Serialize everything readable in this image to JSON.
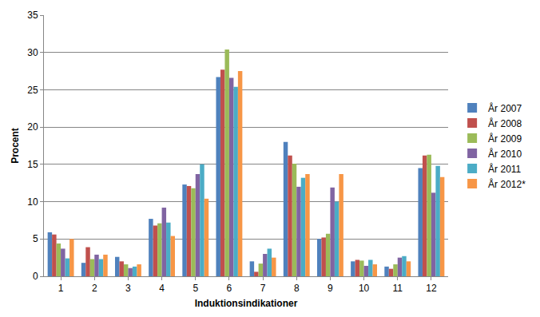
{
  "chart_data": {
    "type": "bar",
    "x_label": "Induktionsindikationer",
    "y_label": "Procent",
    "categories": [
      "1",
      "2",
      "3",
      "4",
      "5",
      "6",
      "7",
      "8",
      "9",
      "10",
      "11",
      "12"
    ],
    "series": [
      {
        "name": "År 2007",
        "color": "#4f81bd",
        "values": [
          5.9,
          1.8,
          2.6,
          7.7,
          12.3,
          26.7,
          2.0,
          18.0,
          5.0,
          2.0,
          1.3,
          14.5
        ]
      },
      {
        "name": "År 2008",
        "color": "#c0504d",
        "values": [
          5.6,
          3.9,
          2.0,
          6.8,
          12.1,
          27.7,
          0.6,
          16.2,
          5.2,
          2.2,
          1.0,
          16.2
        ]
      },
      {
        "name": "År 2009",
        "color": "#9bbb59",
        "values": [
          4.4,
          2.3,
          1.6,
          7.1,
          11.8,
          30.4,
          1.7,
          15.1,
          5.7,
          2.1,
          1.6,
          16.3
        ]
      },
      {
        "name": "År 2010",
        "color": "#8064a2",
        "values": [
          3.7,
          2.9,
          1.1,
          9.2,
          13.7,
          26.6,
          3.0,
          12.0,
          11.9,
          1.4,
          2.5,
          11.2
        ]
      },
      {
        "name": "År 2011",
        "color": "#4bacc6",
        "values": [
          2.4,
          2.3,
          1.3,
          7.2,
          15.0,
          25.4,
          3.7,
          13.2,
          10.0,
          2.2,
          2.7,
          14.8
        ]
      },
      {
        "name": "År 2012*",
        "color": "#f79646",
        "values": [
          5.0,
          2.9,
          1.6,
          5.4,
          10.4,
          27.5,
          2.5,
          13.7,
          13.7,
          1.6,
          2.0,
          13.3
        ]
      }
    ],
    "ylim": [
      0,
      35
    ],
    "yticks": [
      0,
      5,
      10,
      15,
      20,
      25,
      30,
      35
    ],
    "grid": true,
    "legend": "right"
  }
}
